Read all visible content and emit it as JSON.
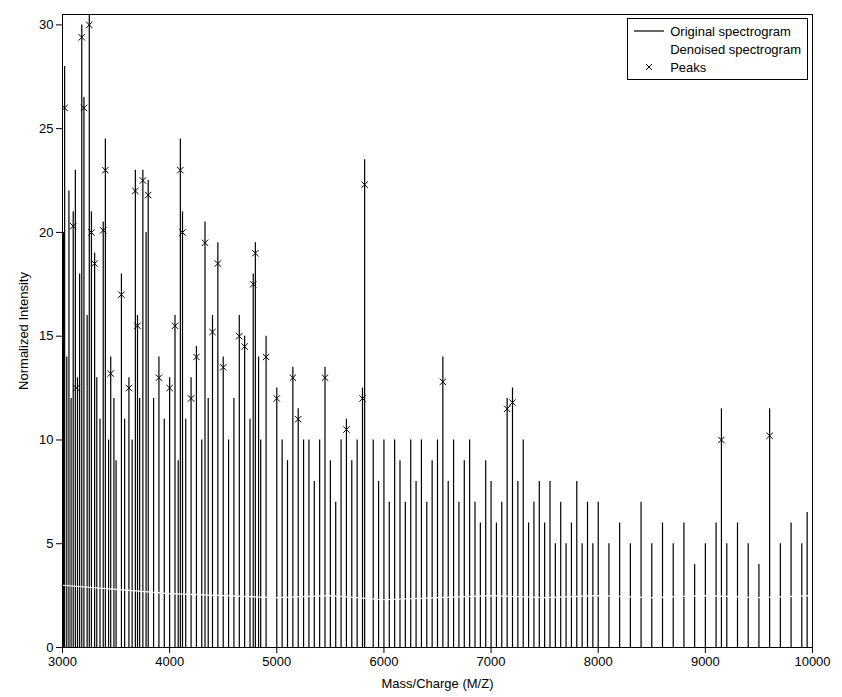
{
  "chart_data": {
    "type": "line",
    "x_label": "Mass/Charge (M/Z)",
    "y_label": "Normalized Intensity",
    "xlim": [
      3000,
      10000
    ],
    "xticks": [
      3000,
      4000,
      5000,
      6000,
      7000,
      8000,
      9000,
      10000
    ],
    "ylim": [
      0,
      30.5
    ],
    "yticks": [
      0,
      5,
      10,
      15,
      20,
      25,
      30
    ],
    "grid": false,
    "legend": "top-right",
    "series": [
      {
        "name": "Original spectrogram",
        "type": "stem",
        "color": "#000000",
        "line_style": "solid",
        "x": [
          3000,
          3010,
          3020,
          3040,
          3060,
          3080,
          3100,
          3120,
          3140,
          3160,
          3180,
          3200,
          3230,
          3250,
          3270,
          3300,
          3320,
          3350,
          3380,
          3400,
          3430,
          3450,
          3480,
          3500,
          3550,
          3580,
          3620,
          3650,
          3680,
          3700,
          3720,
          3750,
          3780,
          3800,
          3850,
          3900,
          3950,
          4000,
          4050,
          4080,
          4100,
          4120,
          4150,
          4200,
          4250,
          4300,
          4330,
          4360,
          4400,
          4450,
          4500,
          4550,
          4600,
          4650,
          4700,
          4750,
          4780,
          4800,
          4830,
          4850,
          4900,
          5000,
          5050,
          5100,
          5150,
          5200,
          5250,
          5300,
          5350,
          5400,
          5450,
          5500,
          5550,
          5600,
          5650,
          5700,
          5750,
          5800,
          5820,
          5900,
          5950,
          6000,
          6050,
          6100,
          6150,
          6200,
          6250,
          6300,
          6350,
          6400,
          6450,
          6500,
          6550,
          6600,
          6650,
          6700,
          6750,
          6800,
          6850,
          6900,
          6950,
          7000,
          7050,
          7100,
          7150,
          7200,
          7250,
          7300,
          7350,
          7400,
          7450,
          7500,
          7550,
          7600,
          7650,
          7700,
          7750,
          7800,
          7850,
          7900,
          7950,
          8000,
          8100,
          8200,
          8300,
          8400,
          8500,
          8600,
          8700,
          8800,
          8900,
          9000,
          9100,
          9150,
          9200,
          9300,
          9400,
          9500,
          9600,
          9700,
          9800,
          9900,
          9950
        ],
        "values": [
          17,
          20,
          28,
          14,
          22,
          12,
          21,
          23,
          13,
          18,
          30,
          26.5,
          16,
          30.5,
          21,
          19,
          13,
          11,
          20.5,
          24.5,
          10,
          14,
          12,
          9,
          18,
          11,
          13,
          10,
          23,
          16,
          12,
          23,
          20,
          22.5,
          12,
          14,
          11,
          13,
          16,
          9,
          24.5,
          21,
          11,
          13,
          14.5,
          10,
          20.5,
          12,
          16,
          19.5,
          14,
          10,
          12,
          16,
          15,
          11,
          18,
          19.5,
          14,
          10,
          15,
          12.5,
          10,
          9,
          13.5,
          11.5,
          10,
          10,
          8,
          10,
          13.5,
          9,
          7,
          10,
          11,
          9,
          10,
          12.5,
          23.5,
          10,
          8,
          10,
          7,
          10,
          9,
          7,
          10,
          8,
          10,
          7,
          9,
          10,
          14,
          8,
          10,
          7,
          9,
          10,
          7,
          6,
          9,
          8,
          6,
          7,
          12,
          12.5,
          8,
          10,
          6,
          7,
          8,
          6,
          8,
          5,
          7,
          5,
          6,
          8,
          5,
          7,
          5,
          7,
          5,
          6,
          5,
          7,
          5,
          6,
          5,
          6,
          4,
          5,
          6,
          11.5,
          5,
          6,
          5,
          4,
          11.5,
          5,
          6,
          5,
          6.5
        ]
      },
      {
        "name": "Denoised spectrogram",
        "type": "line",
        "color": "#ffffff",
        "line_style": "solid",
        "x": [
          3000,
          3500,
          4000,
          4500,
          5000,
          5500,
          6000,
          6500,
          7000,
          7500,
          8000,
          8500,
          9000,
          9500,
          10000
        ],
        "values": [
          3,
          2.8,
          2.6,
          2.5,
          2.4,
          2.5,
          2.3,
          2.4,
          2.5,
          2.4,
          2.5,
          2.4,
          2.5,
          2.4,
          2.5
        ]
      },
      {
        "name": "Peaks",
        "type": "scatter",
        "color": "#000000",
        "marker": "x",
        "x": [
          3020,
          3100,
          3130,
          3180,
          3200,
          3250,
          3270,
          3300,
          3380,
          3400,
          3450,
          3550,
          3620,
          3680,
          3700,
          3750,
          3800,
          3900,
          4000,
          4050,
          4100,
          4120,
          4200,
          4250,
          4330,
          4400,
          4450,
          4500,
          4650,
          4700,
          4780,
          4800,
          4900,
          5000,
          5150,
          5200,
          5450,
          5650,
          5800,
          5820,
          6550,
          7150,
          7200,
          9150,
          9600
        ],
        "values": [
          26,
          20.3,
          12.5,
          29.4,
          26,
          30,
          20,
          18.5,
          20.1,
          23,
          13.2,
          17,
          12.5,
          22,
          15.5,
          22.5,
          21.8,
          13,
          12.5,
          15.5,
          23,
          20,
          12,
          14,
          19.5,
          15.2,
          18.5,
          13.5,
          15,
          14.5,
          17.5,
          19,
          14,
          12,
          13,
          11,
          13,
          10.5,
          12,
          22.3,
          12.8,
          11.5,
          11.8,
          10,
          10.2
        ]
      }
    ]
  }
}
